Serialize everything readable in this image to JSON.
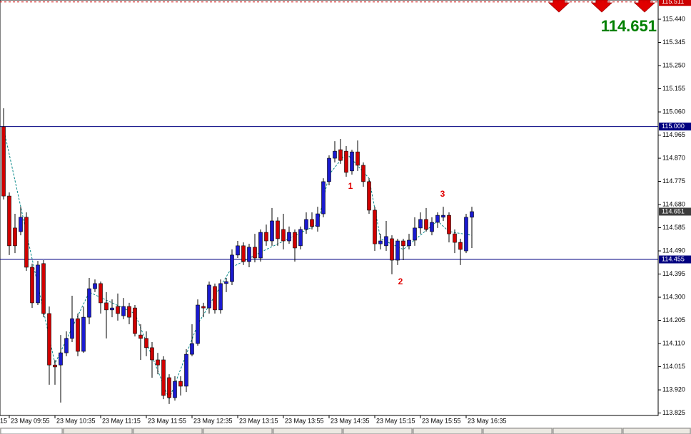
{
  "chart_data": {
    "type": "candlestick",
    "up_color": "#1a1ad0",
    "down_color": "#d00000",
    "ylim": [
      113.815,
      115.519
    ],
    "yticks": [
      {
        "value": 115.44,
        "label": "115.440"
      },
      115.345,
      {
        "value": 115.25,
        "label": "115.250"
      },
      115.155,
      {
        "value": 115.06,
        "label": "115.060"
      },
      114.965,
      {
        "value": 114.87,
        "label": "114.870"
      },
      114.775,
      {
        "value": 114.68,
        "label": "114.680"
      },
      114.585,
      {
        "value": 114.49,
        "label": "114.490"
      },
      114.395,
      {
        "value": 114.3,
        "label": "114.300"
      },
      114.205,
      {
        "value": 114.11,
        "label": "114.110"
      },
      114.015,
      {
        "value": 113.92,
        "label": "113.920"
      },
      113.825
    ],
    "clipped_x_label": "15",
    "categories": [
      null,
      "23 May 09:55",
      null,
      null,
      null,
      null,
      null,
      null,
      null,
      "23 May 10:35",
      null,
      null,
      null,
      null,
      null,
      null,
      null,
      "23 May 11:15",
      null,
      null,
      null,
      null,
      null,
      null,
      null,
      "23 May 11:55",
      null,
      null,
      null,
      null,
      null,
      null,
      null,
      "23 May 12:35",
      null,
      null,
      null,
      null,
      null,
      null,
      null,
      "23 May 13:15",
      null,
      null,
      null,
      null,
      null,
      null,
      null,
      "23 May 13:55",
      null,
      null,
      null,
      null,
      null,
      null,
      null,
      "23 May 14:35",
      null,
      null,
      null,
      null,
      null,
      null,
      null,
      "23 May 15:15",
      null,
      null,
      null,
      null,
      null,
      null,
      null,
      "23 May 15:55",
      null,
      null,
      null,
      null,
      null,
      null,
      null,
      "23 May 16:35",
      null
    ],
    "open": [
      114.999,
      114.715,
      114.584,
      114.569,
      114.628,
      114.423,
      114.277,
      114.438,
      114.233,
      114.022,
      114.022,
      114.072,
      114.131,
      114.212,
      114.078,
      114.218,
      114.335,
      114.356,
      114.277,
      114.248,
      114.262,
      114.224,
      114.262,
      114.256,
      114.145,
      114.131,
      114.093,
      114.043,
      114.043,
      113.97,
      113.888,
      113.955,
      113.935,
      114.066,
      114.11,
      114.262,
      114.256,
      114.344,
      114.248,
      114.356,
      114.364,
      114.473,
      114.511,
      114.446,
      114.505,
      114.461,
      114.566,
      114.531,
      114.613,
      114.578,
      114.531,
      114.566,
      114.511,
      114.578,
      114.619,
      114.59,
      114.642,
      114.774,
      114.87,
      114.905,
      114.899,
      114.818,
      114.896,
      114.841,
      114.774,
      114.657,
      114.519,
      114.511,
      114.54,
      114.452,
      114.531,
      114.511,
      114.534,
      114.584,
      114.619,
      114.569,
      114.607,
      114.628,
      114.636,
      114.56,
      114.525,
      114.49,
      114.628
    ],
    "high": [
      115.075,
      114.73,
      114.642,
      114.671,
      114.648,
      114.438,
      114.449,
      114.452,
      114.262,
      114.043,
      114.145,
      114.16,
      114.306,
      114.233,
      114.262,
      114.379,
      114.373,
      114.364,
      114.321,
      114.291,
      114.315,
      114.297,
      114.277,
      114.268,
      114.189,
      114.16,
      114.116,
      114.072,
      114.058,
      113.984,
      113.976,
      113.976,
      114.087,
      114.189,
      114.291,
      114.277,
      114.364,
      114.356,
      114.373,
      114.379,
      114.496,
      114.531,
      114.525,
      114.519,
      114.56,
      114.578,
      114.598,
      114.666,
      114.628,
      114.642,
      114.59,
      114.578,
      114.59,
      114.648,
      114.648,
      114.671,
      114.788,
      114.882,
      114.94,
      114.949,
      114.92,
      114.905,
      114.943,
      114.853,
      114.788,
      114.671,
      114.56,
      114.613,
      114.554,
      114.54,
      114.54,
      114.56,
      114.628,
      114.648,
      114.666,
      114.628,
      114.648,
      114.671,
      114.648,
      114.578,
      114.54,
      114.642,
      114.671
    ],
    "low": [
      114.701,
      114.473,
      114.481,
      114.554,
      114.408,
      114.256,
      114.268,
      114.218,
      113.941,
      113.941,
      113.868,
      114.058,
      114.116,
      114.058,
      114.072,
      114.189,
      114.321,
      114.233,
      114.131,
      114.218,
      114.204,
      114.21,
      114.189,
      114.139,
      114.043,
      114.058,
      113.97,
      113.984,
      113.882,
      113.862,
      113.876,
      113.897,
      113.911,
      114.058,
      114.101,
      114.218,
      114.233,
      114.233,
      114.233,
      114.321,
      114.35,
      114.461,
      114.432,
      114.423,
      114.443,
      114.446,
      114.511,
      114.511,
      114.511,
      114.496,
      114.519,
      114.446,
      114.496,
      114.56,
      114.578,
      114.569,
      114.628,
      114.759,
      114.853,
      114.847,
      114.794,
      114.803,
      114.818,
      114.753,
      114.642,
      114.49,
      114.496,
      114.49,
      114.394,
      114.432,
      114.452,
      114.496,
      114.511,
      114.56,
      114.569,
      114.554,
      114.584,
      114.613,
      114.525,
      114.481,
      114.432,
      114.481,
      114.502
    ],
    "close": [
      114.715,
      114.511,
      114.511,
      114.628,
      114.423,
      114.277,
      114.432,
      114.233,
      114.022,
      114.014,
      114.072,
      114.131,
      114.212,
      114.078,
      114.218,
      114.335,
      114.356,
      114.277,
      114.248,
      114.256,
      114.233,
      114.262,
      114.218,
      114.151,
      114.131,
      114.093,
      114.043,
      114.022,
      113.897,
      113.888,
      113.955,
      113.935,
      114.066,
      114.11,
      114.268,
      114.256,
      114.35,
      114.248,
      114.356,
      114.364,
      114.473,
      114.511,
      114.446,
      114.505,
      114.461,
      114.566,
      114.531,
      114.613,
      114.54,
      114.531,
      114.566,
      114.502,
      114.578,
      114.619,
      114.59,
      114.642,
      114.774,
      114.87,
      114.899,
      114.861,
      114.812,
      114.896,
      114.841,
      114.774,
      114.657,
      114.519,
      114.531,
      114.549,
      114.452,
      114.531,
      114.511,
      114.534,
      114.584,
      114.619,
      114.578,
      114.607,
      114.636,
      114.636,
      114.56,
      114.525,
      114.496,
      114.628,
      114.651
    ],
    "zigzag": {
      "color": "#0a8a8a",
      "x": [
        0,
        9,
        15,
        23,
        29,
        34,
        40,
        46,
        55,
        57,
        60,
        64,
        66,
        70,
        76,
        78,
        82
      ],
      "values": [
        114.993,
        114.028,
        114.321,
        114.233,
        113.882,
        114.189,
        114.423,
        114.496,
        114.598,
        114.803,
        114.891,
        114.788,
        114.54,
        114.496,
        114.613,
        114.569,
        114.554
      ]
    },
    "levels": [
      {
        "value": 115.511,
        "label": "115.511",
        "color": "#cc0000",
        "dashed": true
      },
      {
        "value": 115.0,
        "label": "115.000",
        "color": "#000080",
        "dashed": false
      },
      {
        "value": 114.455,
        "label": "114.455",
        "color": "#000080",
        "dashed": false
      }
    ],
    "price_marker": {
      "value": 114.651,
      "label": "114.651",
      "color": "#3c3c3c"
    },
    "big_price": "114.651",
    "annotations": [
      "1",
      "2",
      "3"
    ]
  }
}
